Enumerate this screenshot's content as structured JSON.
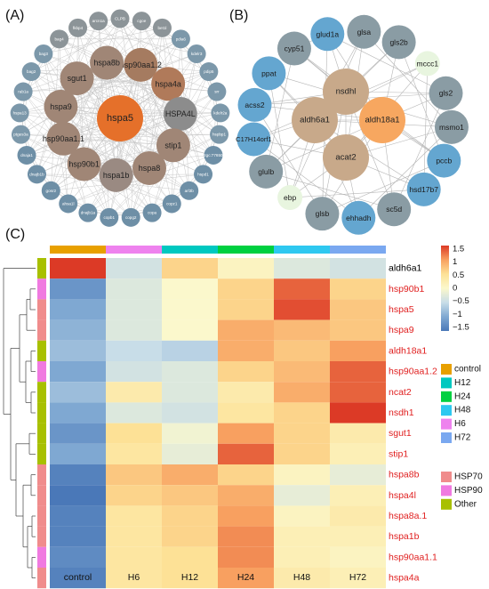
{
  "panels": {
    "a": {
      "label": "(A)",
      "center": {
        "name": "hspa5",
        "color": "#e5702a"
      },
      "inner": [
        {
          "name": "hsp90aa1.2",
          "color": "#a57b60"
        },
        {
          "name": "hspa4a",
          "color": "#b07a5a"
        },
        {
          "name": "HSPA4L",
          "color": "#8c8c8c"
        },
        {
          "name": "stip1",
          "color": "#a08676"
        },
        {
          "name": "hspa8",
          "color": "#a08676"
        },
        {
          "name": "hspa1b",
          "color": "#9a8a82"
        },
        {
          "name": "hsp90b1",
          "color": "#a08676"
        },
        {
          "name": "hsp90aa1.1",
          "color": "#a08676"
        },
        {
          "name": "hspa9",
          "color": "#a08676"
        },
        {
          "name": "sgut1",
          "color": "#a08676"
        },
        {
          "name": "hspa8b",
          "color": "#a08676"
        }
      ],
      "outer": [
        {
          "name": "CLPB",
          "color": "#8c9498"
        },
        {
          "name": "cgoe",
          "color": "#8c9498"
        },
        {
          "name": "bet1l",
          "color": "#8c9498"
        },
        {
          "name": "pdia6",
          "color": "#7c98aa"
        },
        {
          "name": "kdelr3",
          "color": "#7c98aa"
        },
        {
          "name": "pdip5",
          "color": "#7c98aa"
        },
        {
          "name": "srr",
          "color": "#7c98aa"
        },
        {
          "name": "kdelr2a",
          "color": "#7c98aa"
        },
        {
          "name": "hspbp1",
          "color": "#7c98aa"
        },
        {
          "name": "zgc:77650",
          "color": "#6e8fa6"
        },
        {
          "name": "hspd1",
          "color": "#6e8fa6"
        },
        {
          "name": "arl3b",
          "color": "#6e8fa6"
        },
        {
          "name": "copz1",
          "color": "#6e8fa6"
        },
        {
          "name": "copa",
          "color": "#6e8fa6"
        },
        {
          "name": "copg2",
          "color": "#6e8fa6"
        },
        {
          "name": "copb1",
          "color": "#6e8fa6"
        },
        {
          "name": "dnajb1a",
          "color": "#6e8fa6"
        },
        {
          "name": "ahsa1l",
          "color": "#6e8fa6"
        },
        {
          "name": "gosr2",
          "color": "#6e8fa6"
        },
        {
          "name": "dnajb1b",
          "color": "#6e8fa6"
        },
        {
          "name": "dnaja1",
          "color": "#6e8fa6"
        },
        {
          "name": "ptges3a",
          "color": "#7c98aa"
        },
        {
          "name": "hspa13",
          "color": "#7c98aa"
        },
        {
          "name": "rab1a",
          "color": "#7c98aa"
        },
        {
          "name": "bag2",
          "color": "#7c98aa"
        },
        {
          "name": "bag3",
          "color": "#7c98aa"
        },
        {
          "name": "bag4",
          "color": "#8c9498"
        },
        {
          "name": "fkbp4",
          "color": "#8c9498"
        },
        {
          "name": "arcn1a",
          "color": "#8c9498"
        }
      ]
    },
    "b": {
      "label": "(B)",
      "inner": [
        {
          "name": "nsdhl",
          "color": "#c8a98a"
        },
        {
          "name": "aldh6a1",
          "color": "#c8a98a"
        },
        {
          "name": "aldh18a1",
          "color": "#f7a760"
        },
        {
          "name": "acat2",
          "color": "#c8a98a"
        }
      ],
      "outer": [
        {
          "name": "glud1a",
          "color": "#64a6d0"
        },
        {
          "name": "glsa",
          "color": "#8a9ca4"
        },
        {
          "name": "gls2b",
          "color": "#8a9ca4"
        },
        {
          "name": "mccc1",
          "color": "#e8f5df"
        },
        {
          "name": "gls2",
          "color": "#8a9ca4"
        },
        {
          "name": "msmo1",
          "color": "#8a9ca4"
        },
        {
          "name": "pccb",
          "color": "#64a6d0"
        },
        {
          "name": "hsd17b7",
          "color": "#64a6d0"
        },
        {
          "name": "sc5d",
          "color": "#8a9ca4"
        },
        {
          "name": "ehhadh",
          "color": "#64a6d0"
        },
        {
          "name": "glsb",
          "color": "#8a9ca4"
        },
        {
          "name": "ebp",
          "color": "#e8f5df"
        },
        {
          "name": "glulb",
          "color": "#8a9ca4"
        },
        {
          "name": "C17H14orf1",
          "color": "#64a6d0"
        },
        {
          "name": "acss2",
          "color": "#64a6d0"
        },
        {
          "name": "ppat",
          "color": "#64a6d0"
        },
        {
          "name": "cyp51",
          "color": "#8a9ca4"
        }
      ]
    },
    "c": {
      "label": "(C)",
      "columns": [
        "control",
        "H6",
        "H12",
        "H24",
        "H48",
        "H72"
      ],
      "column_colors": [
        "#e8a000",
        "#ee82ee",
        "#00c8c0",
        "#00d040",
        "#2ec8f0",
        "#7aa8f0"
      ],
      "rows": [
        {
          "gene": "aldh6a1",
          "group": "Other",
          "label_color": "#000000",
          "values": [
            1.5,
            -0.4,
            0.6,
            0.1,
            -0.3,
            -0.4
          ]
        },
        {
          "gene": "hsp90b1",
          "group": "HSP90",
          "label_color": "#e02020",
          "values": [
            -1.2,
            -0.3,
            0.0,
            0.6,
            1.3,
            0.6
          ]
        },
        {
          "gene": "hspa5",
          "group": "HSP70",
          "label_color": "#e02020",
          "values": [
            -1.0,
            -0.3,
            0.0,
            0.6,
            1.4,
            0.7
          ]
        },
        {
          "gene": "hspa9",
          "group": "HSP70",
          "label_color": "#e02020",
          "values": [
            -0.9,
            -0.3,
            0.0,
            0.9,
            0.8,
            0.7
          ]
        },
        {
          "gene": "aldh18a1",
          "group": "Other",
          "label_color": "#e02020",
          "values": [
            -0.8,
            -0.5,
            -0.6,
            0.9,
            0.7,
            1.0
          ]
        },
        {
          "gene": "hsp90aa1.2",
          "group": "HSP90",
          "label_color": "#e02020",
          "values": [
            -1.0,
            -0.4,
            -0.3,
            0.6,
            0.8,
            1.3
          ]
        },
        {
          "gene": "ncat2",
          "group": "Other",
          "label_color": "#e02020",
          "values": [
            -0.8,
            0.3,
            -0.3,
            0.3,
            0.9,
            1.3
          ]
        },
        {
          "gene": "nsdh1",
          "group": "Other",
          "label_color": "#e02020",
          "values": [
            -1.0,
            -0.3,
            -0.4,
            0.4,
            0.6,
            1.5
          ]
        },
        {
          "gene": "sgut1",
          "group": "Other",
          "label_color": "#e02020",
          "values": [
            -1.2,
            0.5,
            -0.1,
            1.0,
            0.6,
            0.3
          ]
        },
        {
          "gene": "stip1",
          "group": "Other",
          "label_color": "#e02020",
          "values": [
            -1.0,
            0.4,
            -0.2,
            1.3,
            0.6,
            0.2
          ]
        },
        {
          "gene": "hspa8b",
          "group": "HSP70",
          "label_color": "#e02020",
          "values": [
            -1.4,
            0.7,
            0.9,
            0.6,
            0.1,
            -0.2
          ]
        },
        {
          "gene": "hspa4l",
          "group": "HSP70",
          "label_color": "#e02020",
          "values": [
            -1.5,
            0.6,
            0.7,
            0.9,
            -0.2,
            0.2
          ]
        },
        {
          "gene": "hspa8a.1",
          "group": "HSP70",
          "label_color": "#e02020",
          "values": [
            -1.4,
            0.4,
            0.6,
            1.0,
            0.1,
            0.3
          ]
        },
        {
          "gene": "hspa1b",
          "group": "HSP70",
          "label_color": "#e02020",
          "values": [
            -1.4,
            0.4,
            0.6,
            1.1,
            0.2,
            0.2
          ]
        },
        {
          "gene": "hsp90aa1.1",
          "group": "HSP90",
          "label_color": "#e02020",
          "values": [
            -1.3,
            0.4,
            0.5,
            1.1,
            0.2,
            0.1
          ]
        },
        {
          "gene": "hspa4a",
          "group": "HSP70",
          "label_color": "#e02020",
          "values": [
            -1.4,
            0.4,
            0.5,
            1.0,
            0.3,
            0.2
          ]
        }
      ],
      "scale": {
        "ticks": [
          "1.5",
          "1",
          "0.5",
          "0",
          "−0.5",
          "−1",
          "−1.5"
        ],
        "min": -1.5,
        "max": 1.5
      },
      "column_legend": [
        {
          "label": "control",
          "color": "#e8a000"
        },
        {
          "label": "H12",
          "color": "#00c8c0"
        },
        {
          "label": "H24",
          "color": "#00d040"
        },
        {
          "label": "H48",
          "color": "#2ec8f0"
        },
        {
          "label": "H6",
          "color": "#ee82ee"
        },
        {
          "label": "H72",
          "color": "#7aa8f0"
        }
      ],
      "group_legend": [
        {
          "label": "HSP70",
          "color": "#f08c8c"
        },
        {
          "label": "HSP90",
          "color": "#f07ae0"
        },
        {
          "label": "Other",
          "color": "#a8c000"
        }
      ],
      "group_colors": {
        "HSP70": "#f08c8c",
        "HSP90": "#f07ae0",
        "Other": "#a8c000"
      }
    }
  }
}
